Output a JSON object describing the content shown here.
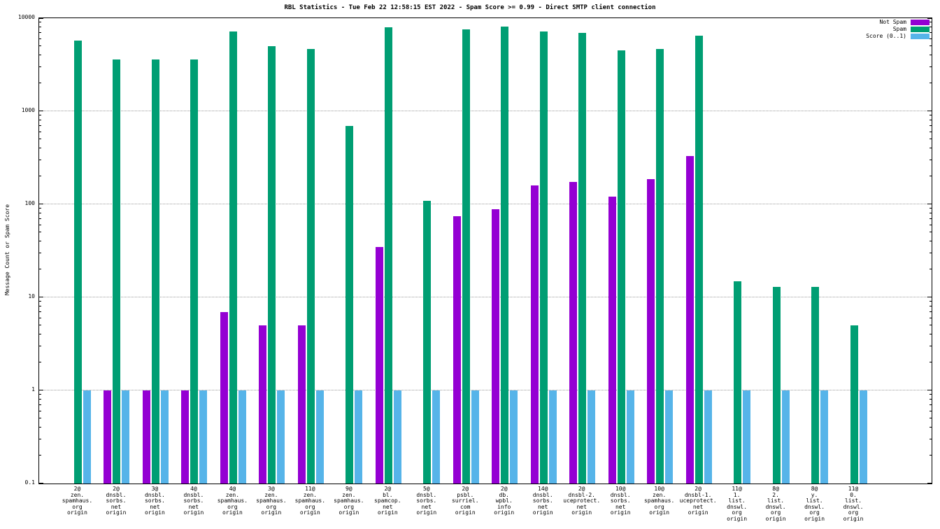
{
  "title": "RBL Statistics - Tue Feb 22 12:58:15 EST 2022 - Spam Score >= 0.99 - Direct SMTP client connection",
  "ylabel": "Message Count or Spam Score",
  "y_ticks": [
    "0.1",
    "1",
    "10",
    "100",
    "1000",
    "10000"
  ],
  "legend": [
    {
      "label": "Not Spam",
      "color": "#9400d3"
    },
    {
      "label": "Spam",
      "color": "#009e73"
    },
    {
      "label": "Score (0..1)",
      "color": "#56b4e9"
    }
  ],
  "chart_data": {
    "type": "bar",
    "y_scale": "log",
    "ylim": [
      0.1,
      10000
    ],
    "grid": true,
    "legend_position": "top-right",
    "title": "RBL Statistics - Tue Feb 22 12:58:15 EST 2022 - Spam Score >= 0.99 - Direct SMTP client connection",
    "xlabel": "",
    "ylabel": "Message Count or Spam Score",
    "categories": [
      "2@\nzen.\nspamhaus.\norg\norigin",
      "2@\ndnsbl.\nsorbs.\nnet\norigin",
      "3@\ndnsbl.\nsorbs.\nnet\norigin",
      "4@\ndnsbl.\nsorbs.\nnet\norigin",
      "4@\nzen.\nspamhaus.\norg\norigin",
      "3@\nzen.\nspamhaus.\norg\norigin",
      "11@\nzen.\nspamhaus.\norg\norigin",
      "9@\nzen.\nspamhaus.\norg\norigin",
      "2@\nbl.\nspamcop.\nnet\norigin",
      "5@\ndnsbl.\nsorbs.\nnet\norigin",
      "2@\npsbl.\nsurriel.\ncom\norigin",
      "2@\ndb.\nwpbl.\ninfo\norigin",
      "14@\ndnsbl.\nsorbs.\nnet\norigin",
      "2@\ndnsbl-2.\nuceprotect.\nnet\norigin",
      "10@\ndnsbl.\nsorbs.\nnet\norigin",
      "10@\nzen.\nspamhaus.\norg\norigin",
      "2@\ndnsbl-1.\nuceprotect.\nnet\norigin",
      "11@\n1.\nlist.\ndnswl.\norg\norigin",
      "8@\n2.\nlist.\ndnswl.\norg\norigin",
      "8@\ny.\nlist.\ndnswl.\norg\norigin",
      "11@\n0.\nlist.\ndnswl.\norg\norigin"
    ],
    "series": [
      {
        "name": "Not Spam",
        "color": "#9400d3",
        "values": [
          null,
          1,
          1,
          1,
          7,
          5,
          5,
          null,
          35,
          null,
          75,
          88,
          160,
          175,
          120,
          185,
          330,
          null,
          null,
          null,
          null
        ]
      },
      {
        "name": "Spam",
        "color": "#009e73",
        "values": [
          5700,
          3600,
          3600,
          3600,
          7200,
          5000,
          4700,
          700,
          8000,
          110,
          7600,
          8100,
          7200,
          7000,
          4500,
          4700,
          6500,
          15,
          13,
          13,
          5
        ]
      },
      {
        "name": "Score (0..1)",
        "color": "#56b4e9",
        "values": [
          1,
          1,
          1,
          1,
          1,
          1,
          1,
          1,
          1,
          1,
          1,
          1,
          1,
          1,
          1,
          1,
          1,
          1,
          1,
          1,
          1
        ]
      }
    ]
  }
}
